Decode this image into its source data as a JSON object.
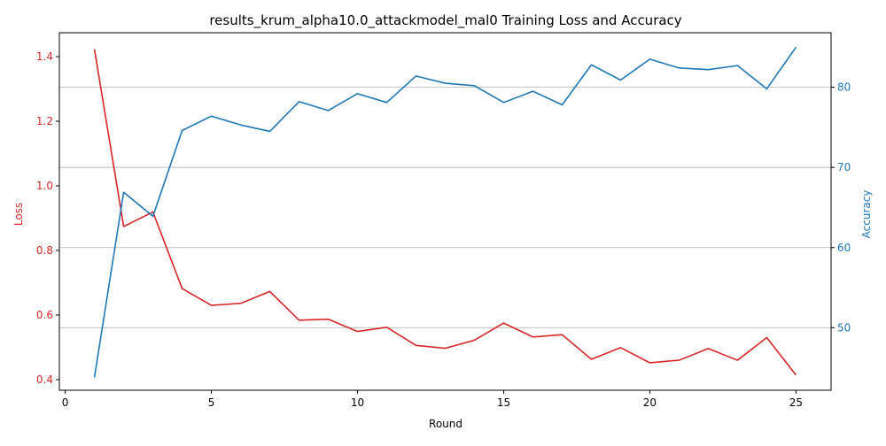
{
  "chart_data": {
    "type": "line",
    "title": "results_krum_alpha10.0_attackmodel_mal0 Training Loss and Accuracy",
    "xlabel": "Round",
    "ylabel_left": "Loss",
    "ylabel_right": "Accuracy",
    "x": [
      1,
      2,
      3,
      4,
      5,
      6,
      7,
      8,
      9,
      10,
      11,
      12,
      13,
      14,
      15,
      16,
      17,
      18,
      19,
      20,
      21,
      22,
      23,
      24,
      25
    ],
    "xlim": [
      -0.2,
      26.2
    ],
    "ylim_left": [
      0.367,
      1.474
    ],
    "ylim_right": [
      42.2,
      86.8
    ],
    "x_ticks": [
      0,
      5,
      10,
      15,
      20,
      25
    ],
    "y_ticks_left": [
      0.4,
      0.6,
      0.8,
      1.0,
      1.2,
      1.4
    ],
    "y_ticks_right": [
      50,
      60,
      70,
      80
    ],
    "grid": "horizontal lines at right-axis ticks",
    "series": [
      {
        "name": "Loss",
        "axis": "left",
        "color": "#d62728",
        "values": [
          1.423,
          0.874,
          0.919,
          0.682,
          0.63,
          0.636,
          0.673,
          0.584,
          0.587,
          0.549,
          0.562,
          0.506,
          0.497,
          0.522,
          0.575,
          0.532,
          0.539,
          0.463,
          0.499,
          0.452,
          0.46,
          0.496,
          0.46,
          0.53,
          0.414
        ]
      },
      {
        "name": "Accuracy",
        "axis": "right",
        "color": "#1f77b4",
        "values": [
          43.8,
          66.9,
          63.9,
          74.6,
          76.4,
          75.3,
          74.5,
          78.2,
          77.1,
          79.2,
          78.1,
          81.4,
          80.5,
          80.2,
          78.1,
          79.5,
          77.8,
          82.8,
          80.9,
          83.5,
          82.4,
          82.2,
          82.7,
          79.8,
          85.0
        ]
      }
    ]
  }
}
